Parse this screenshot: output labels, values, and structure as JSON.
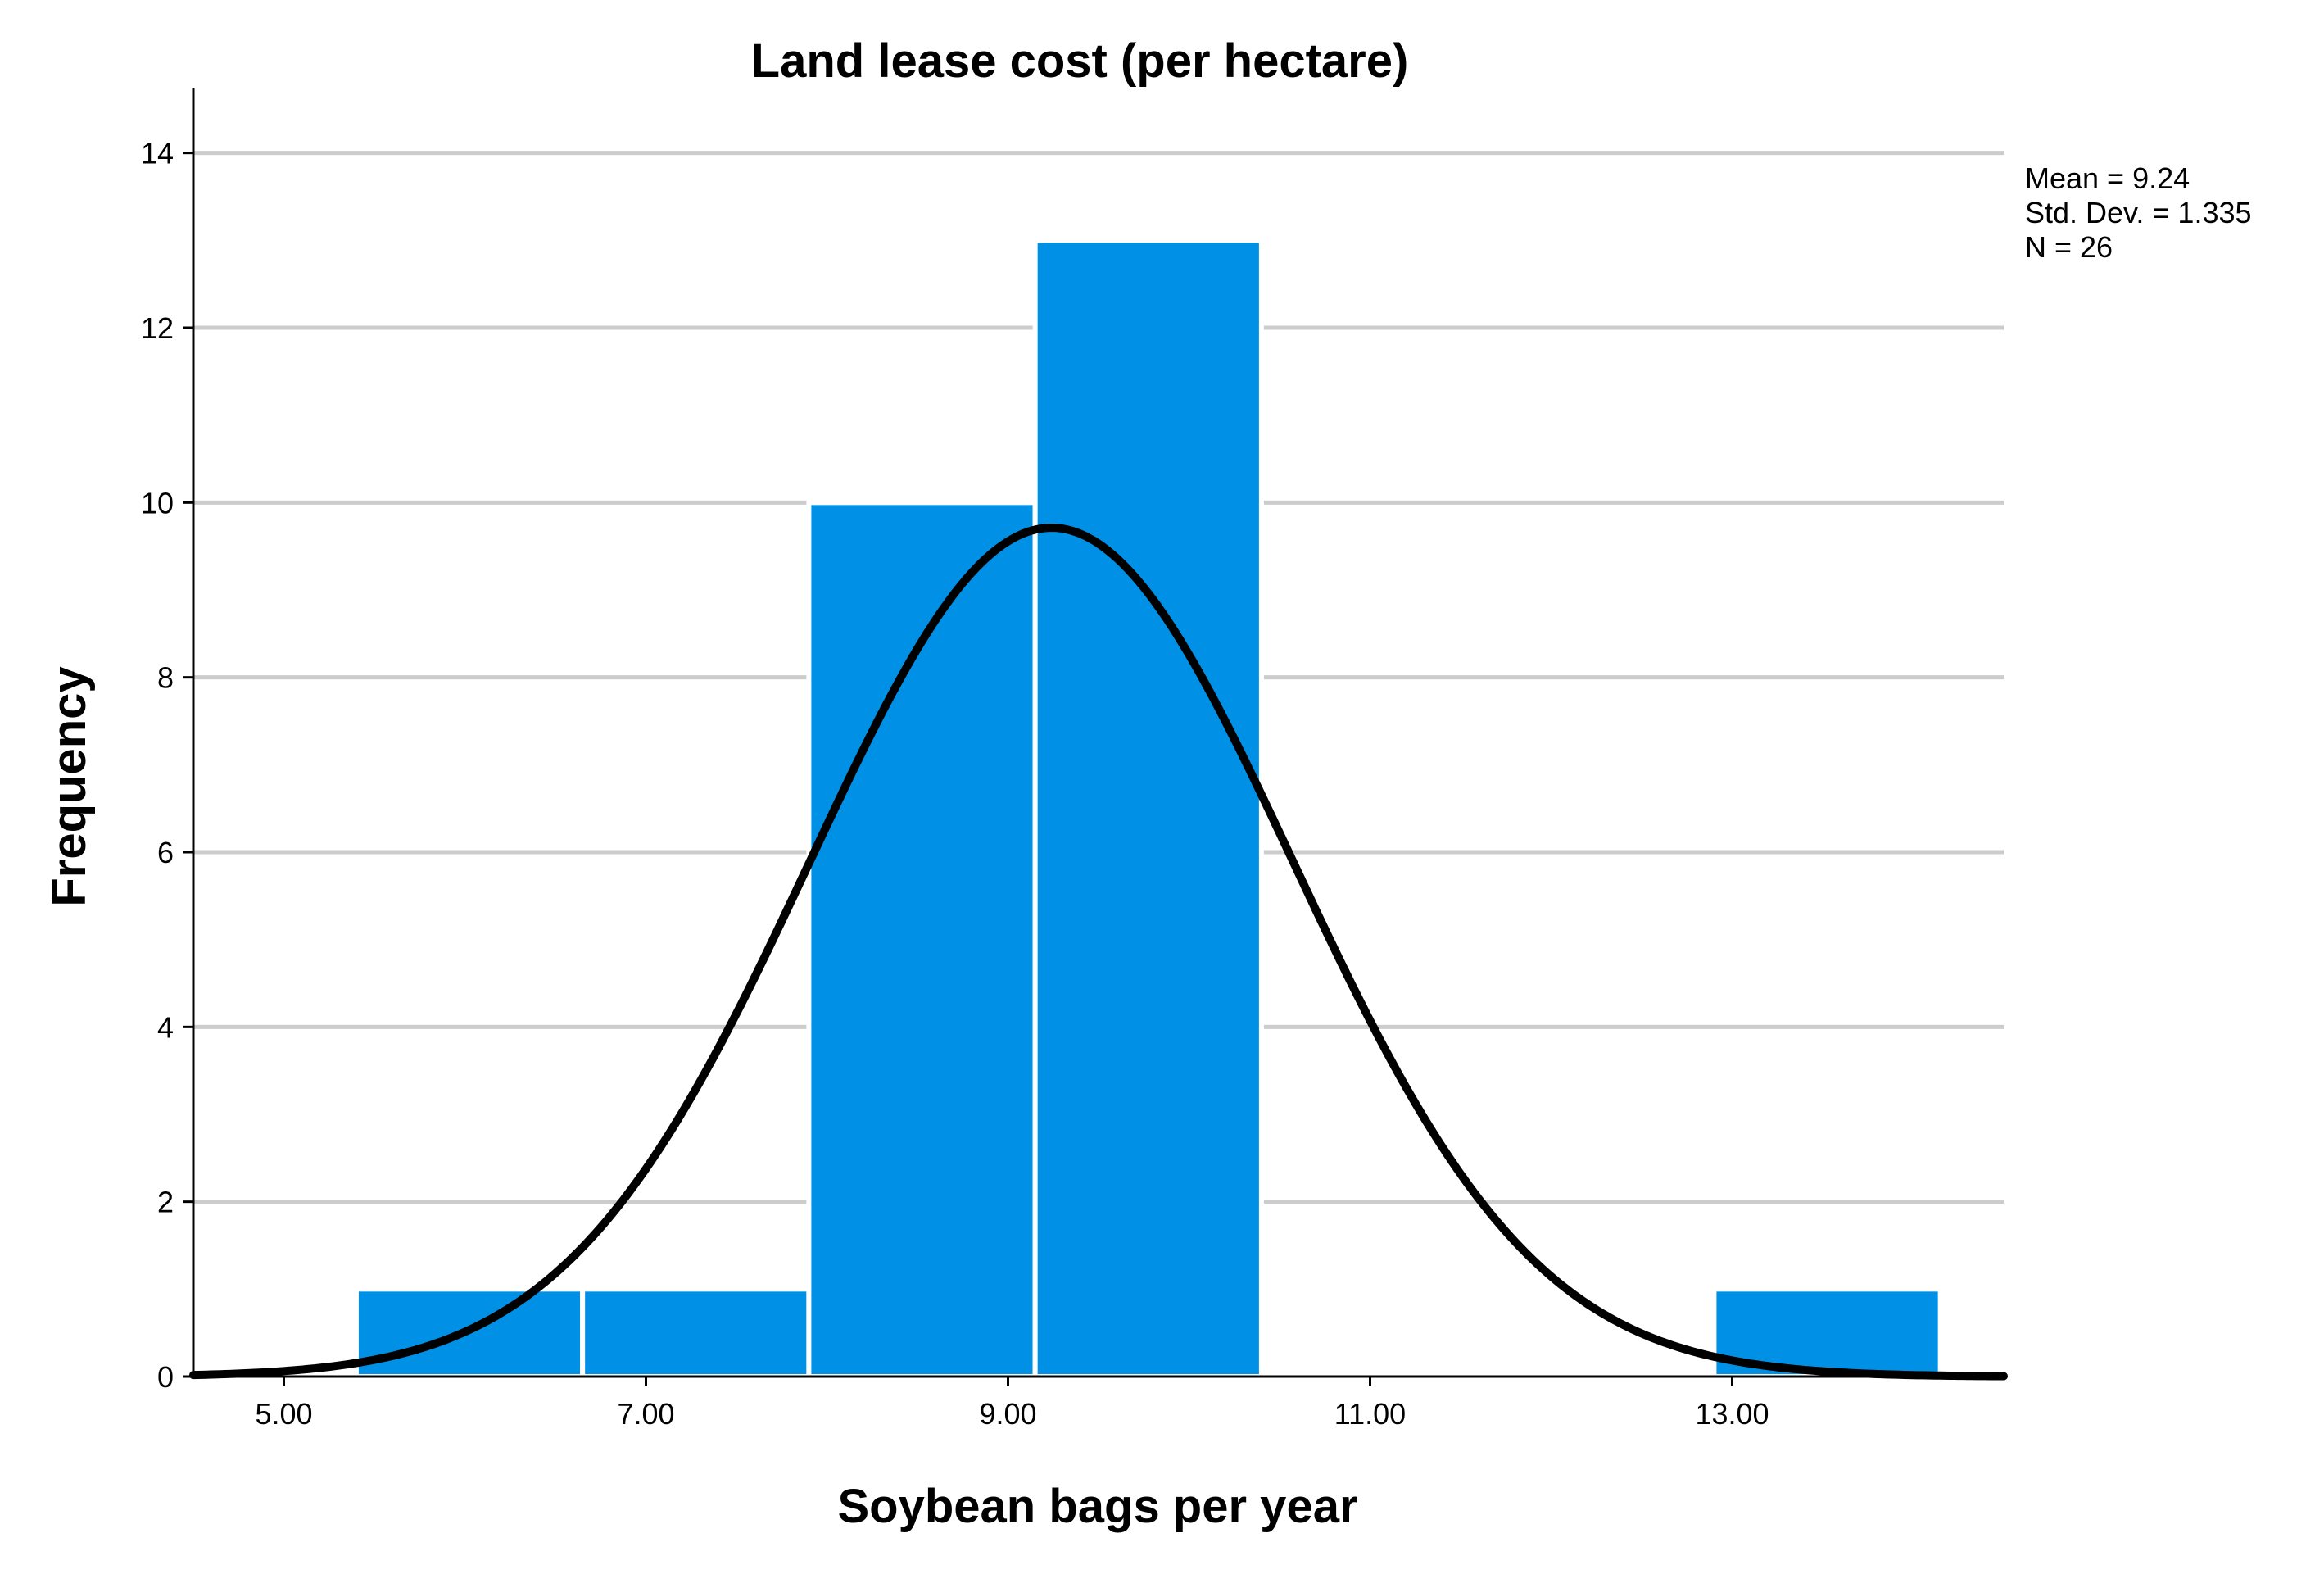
{
  "chart_data": {
    "type": "bar",
    "subtype": "histogram",
    "title": "Land lease cost (per hectare)",
    "xlabel": "Soybean bags per year",
    "ylabel": "Frequency",
    "xlim": [
      4.5,
      14.5
    ],
    "ylim": [
      0,
      14.7
    ],
    "x_ticks": [
      "5.00",
      "7.00",
      "9.00",
      "11.00",
      "13.00"
    ],
    "x_tick_values": [
      5,
      7,
      9,
      11,
      13
    ],
    "y_ticks": [
      0,
      2,
      4,
      6,
      8,
      10,
      12,
      14
    ],
    "grid": true,
    "bins": [
      {
        "start": 5.4,
        "end": 6.65,
        "count": 1
      },
      {
        "start": 6.65,
        "end": 7.9,
        "count": 1
      },
      {
        "start": 7.9,
        "end": 9.15,
        "count": 10
      },
      {
        "start": 9.15,
        "end": 10.4,
        "count": 13
      },
      {
        "start": 10.4,
        "end": 11.65,
        "count": 0
      },
      {
        "start": 11.65,
        "end": 12.9,
        "count": 0
      },
      {
        "start": 12.9,
        "end": 14.15,
        "count": 1
      }
    ],
    "normal_curve": {
      "mean": 9.24,
      "sd": 1.335,
      "n": 26,
      "bin_width": 1.25
    },
    "stats_box": {
      "mean_label": "Mean = 9.24",
      "sd_label": "Std. Dev. = 1.335",
      "n_label": "N = 26",
      "placement": "top-right"
    },
    "colors": {
      "bar": "#0091E6",
      "bar_edge": "#ffffff",
      "curve": "#000000",
      "grid": "#cccccc",
      "axis": "#000000"
    }
  }
}
